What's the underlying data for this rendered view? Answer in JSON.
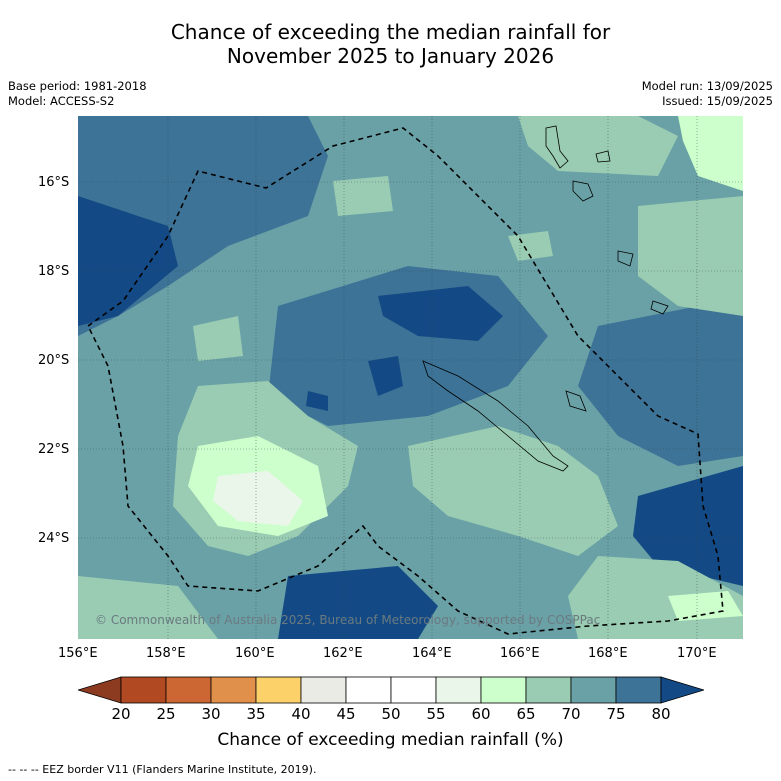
{
  "title_line1": "Chance of exceeding the median rainfall for",
  "title_line2": "November 2025 to January 2026",
  "base_period": "Base period: 1981-2018",
  "model": "Model: ACCESS-S2",
  "model_run": "Model run: 13/09/2025",
  "issued": "Issued: 15/09/2025",
  "copyright": "© Commonwealth of Australia 2025, Bureau of Meteorology, supported by COSPPac",
  "lat_labels": [
    "16°S",
    "18°S",
    "20°S",
    "22°S",
    "24°S"
  ],
  "lon_labels": [
    "156°E",
    "158°E",
    "160°E",
    "162°E",
    "164°E",
    "166°E",
    "168°E",
    "170°E"
  ],
  "colorbar": {
    "ticks": [
      "20",
      "25",
      "30",
      "35",
      "40",
      "45",
      "50",
      "55",
      "60",
      "65",
      "70",
      "75",
      "80"
    ],
    "colors": [
      "#8c3a20",
      "#b14a22",
      "#cc6633",
      "#e0904a",
      "#fcd16a",
      "#ebebe6",
      "#ffffff",
      "#ffffff",
      "#eaf6ea",
      "#ccffcc",
      "#99ccb2",
      "#6aa1a6",
      "#3d7396",
      "#134a85"
    ],
    "label": "Chance of exceeding median rainfall (%)"
  },
  "footnote": "--  --  -- EEZ border V11 (Flanders Marine Institute, 2019).",
  "icons": [
    "eez-border-line",
    "coastline"
  ]
}
